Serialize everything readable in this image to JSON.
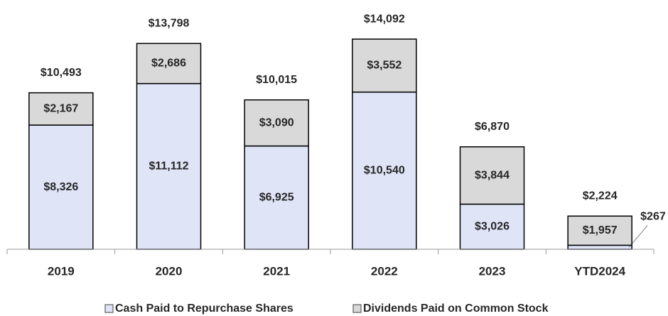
{
  "chart_data": {
    "type": "stacked_bar",
    "categories": [
      "2019",
      "2020",
      "2021",
      "2022",
      "2023",
      "YTD2024"
    ],
    "series": [
      {
        "name": "Cash Paid to Repurchase Shares",
        "color": "#dfe4f7",
        "values": [
          8326,
          11112,
          6925,
          10540,
          3026,
          267
        ],
        "value_labels": [
          "$8,326",
          "$11,112",
          "$6,925",
          "$10,540",
          "$3,026",
          "$267"
        ]
      },
      {
        "name": "Dividends Paid on Common Stock",
        "color": "#d9d9d9",
        "values": [
          2167,
          2686,
          3090,
          3552,
          3844,
          1957
        ],
        "value_labels": [
          "$2,167",
          "$2,686",
          "$3,090",
          "$3,552",
          "$3,844",
          "$1,957"
        ]
      }
    ],
    "totals": [
      10493,
      13798,
      10015,
      14092,
      6870,
      2224
    ],
    "total_labels": [
      "$10,493",
      "$13,798",
      "$10,015",
      "$14,092",
      "$6,870",
      "$2,224"
    ],
    "ylim": [
      0,
      15000
    ]
  }
}
